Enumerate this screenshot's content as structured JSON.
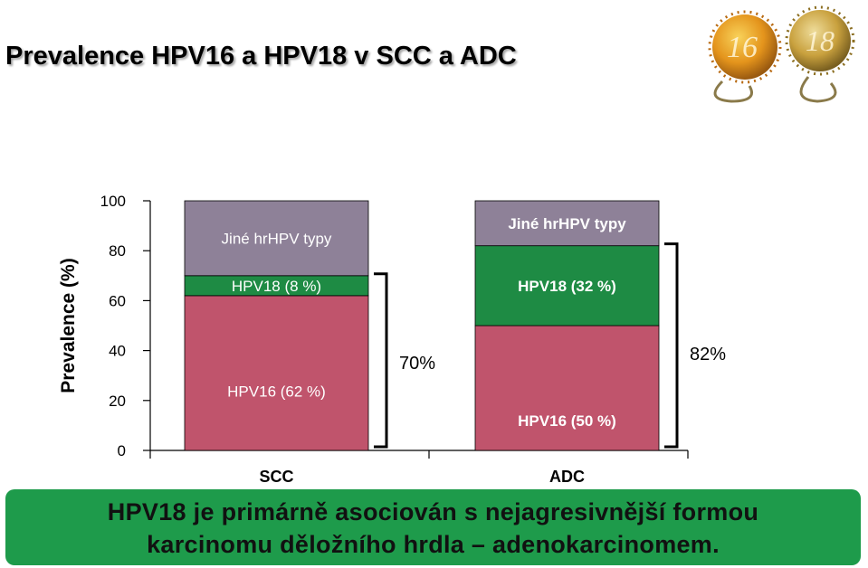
{
  "slide": {
    "title": "Prevalence HPV16 a HPV18 v SCC a ADC",
    "illustration_icon": "hpv-virus-particles-icon",
    "illustration_labels": [
      "16",
      "18"
    ],
    "banner_line1": "HPV18 je primárně asociován s nejagresivnější formou",
    "banner_line2": "karcinomu děložního hrdla – adenokarcinomem."
  },
  "chart_data": {
    "type": "bar",
    "stacked": true,
    "ylabel": "Prevalence (%)",
    "xlabel": "",
    "ylim": [
      0,
      100
    ],
    "yticks": [
      0,
      20,
      40,
      60,
      80,
      100
    ],
    "categories": [
      "SCC",
      "ADC"
    ],
    "series": [
      {
        "name": "HPV16",
        "values": [
          62,
          50
        ],
        "color": "#c0546c",
        "labels": [
          "HPV16 (62 %)",
          "HPV16 (50 %)"
        ]
      },
      {
        "name": "HPV18",
        "values": [
          8,
          32
        ],
        "color": "#1e8b44",
        "labels": [
          "HPV18 (8 %)",
          "HPV18 (32 %)"
        ]
      },
      {
        "name": "Jiné hrHPV typy",
        "values": [
          30,
          18
        ],
        "color": "#8e8198",
        "labels": [
          "Jiné hrHPV typy",
          "Jiné hrHPV typy"
        ]
      }
    ],
    "brackets": [
      {
        "category": "SCC",
        "from": 0,
        "to": 70,
        "label": "70%"
      },
      {
        "category": "ADC",
        "from": 0,
        "to": 82,
        "label": "82%"
      }
    ],
    "grid": false,
    "legend": "none"
  }
}
